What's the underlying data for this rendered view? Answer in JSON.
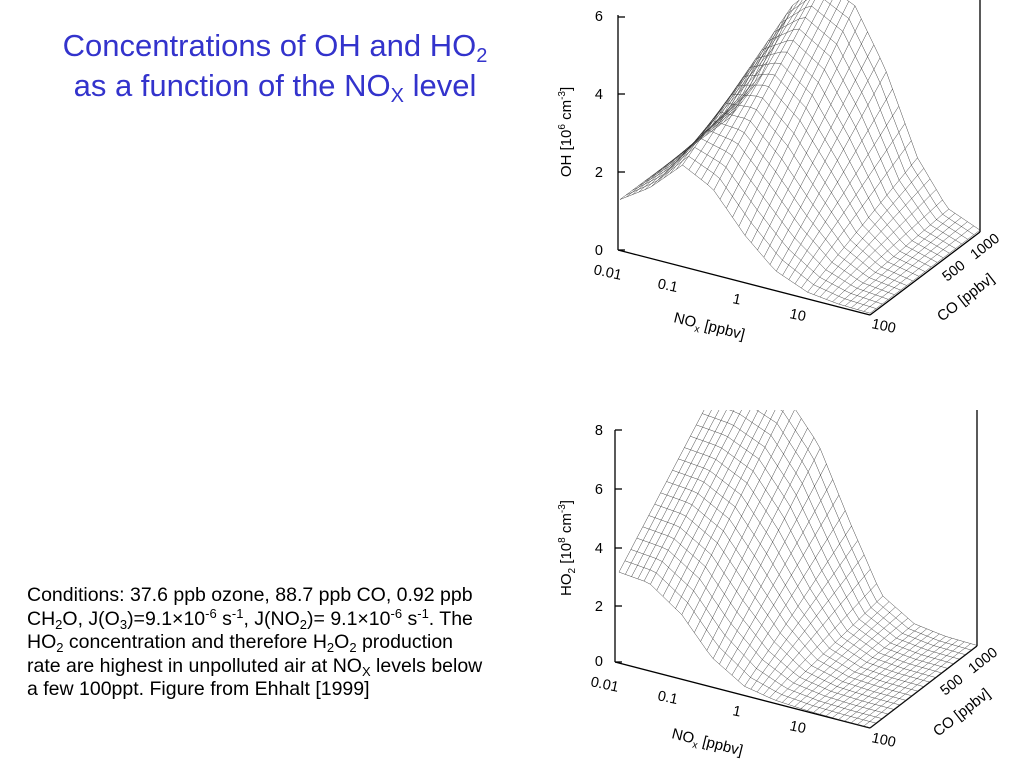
{
  "slide": {
    "title_line1_main": "Concentrations of OH and HO",
    "title_line1_sub": "2",
    "title_line2_main": "as a function of the NO",
    "title_line2_sub": "X",
    "title_line2_tail": " level"
  },
  "caption": {
    "p1": "Conditions: 37.6 ppb ozone, 88.7 ppb CO, 0.92 ppb CH",
    "p1_sub": "2",
    "p2": "O, J(O",
    "p2_sub": "3",
    "p3": ")=9.1×10",
    "p3_sup": "-6",
    "p4": " s",
    "p4_sup": "-1",
    "p5": ", J(NO",
    "p5_sub": "2",
    "p6": ")= 9.1×10",
    "p6_sup": "-6",
    "p7": " s",
    "p7_sup": "-1",
    "p8": ". The HO",
    "p8_sub": "2",
    "p9": " concentration and therefore H",
    "p9_sub1": "2",
    "p9_mid": "O",
    "p9_sub2": "2",
    "p10": " production rate are highest in unpolluted air at NO",
    "p10_sub": "X",
    "p11": " levels below a few 100ppt. Figure from Ehhalt [1999]"
  },
  "chart_data": [
    {
      "type": "surface3d",
      "zlabel_main": "OH [10",
      "zlabel_sup": "6",
      "zlabel_unit": " cm",
      "zlabel_sup2": "-3",
      "zlabel_close": "]",
      "zticks": [
        "0",
        "2",
        "4",
        "6"
      ],
      "zlim": [
        0,
        6
      ],
      "xlabel_main": "NO",
      "xlabel_sub": "x",
      "xlabel_tail": " [ppbv]",
      "xticks": [
        "0.01",
        "0.1",
        "1",
        "10",
        "100"
      ],
      "xlim": [
        0.01,
        100
      ],
      "x_scale": "log",
      "ylabel": "CO [ppbv]",
      "yticks": [
        "500",
        "1000"
      ],
      "ylim": [
        0,
        1000
      ],
      "profile_nox": [
        0.01,
        0.03,
        0.1,
        0.3,
        1,
        3,
        10,
        30,
        100
      ],
      "profile_peak_co_high": [
        1.3,
        2.5,
        4.6,
        5.4,
        5.0,
        3.6,
        1.5,
        0.4,
        0.05
      ],
      "profile_peak_co_low": [
        1.3,
        1.8,
        2.6,
        2.2,
        1.2,
        0.5,
        0.15,
        0.05,
        0.02
      ]
    },
    {
      "type": "surface3d",
      "zlabel_main": "HO",
      "zlabel_sub": "2",
      "zlabel_mid": " [10",
      "zlabel_sup": "8",
      "zlabel_unit": " cm",
      "zlabel_sup2": "-3",
      "zlabel_close": "]",
      "zticks": [
        "0",
        "2",
        "4",
        "6",
        "8"
      ],
      "zlim": [
        0,
        8
      ],
      "xlabel_main": "NO",
      "xlabel_sub": "x",
      "xlabel_tail": " [ppbv]",
      "xticks": [
        "0.01",
        "0.1",
        "1",
        "10",
        "100"
      ],
      "xlim": [
        0.01,
        100
      ],
      "x_scale": "log",
      "ylabel": "CO [ppbv]",
      "yticks": [
        "500",
        "1000"
      ],
      "ylim": [
        0,
        1000
      ],
      "profile_nox": [
        0.01,
        0.03,
        0.1,
        0.3,
        1,
        3,
        10,
        30,
        100
      ],
      "profile_peak_co_high": [
        7.3,
        7.2,
        6.8,
        5.5,
        3.0,
        0.9,
        0.2,
        0.05,
        0.02
      ],
      "profile_peak_co_low": [
        3.1,
        3.0,
        2.2,
        1.0,
        0.3,
        0.1,
        0.03,
        0.01,
        0.01
      ]
    }
  ]
}
